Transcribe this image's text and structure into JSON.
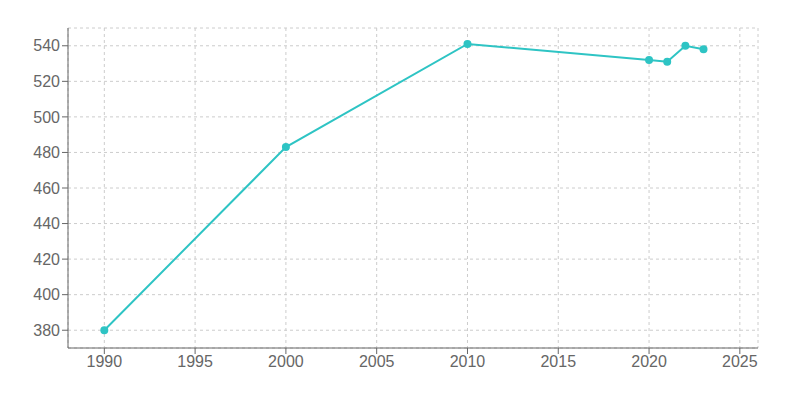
{
  "chart_data": {
    "type": "line",
    "x": [
      1990,
      2000,
      2010,
      2020,
      2021,
      2022,
      2023
    ],
    "values": [
      380,
      483,
      541,
      532,
      531,
      540,
      538
    ],
    "color": "#2ec4c4",
    "marker": "circle",
    "xlim": [
      1988,
      2026
    ],
    "xticks": [
      1990,
      1995,
      2000,
      2005,
      2010,
      2015,
      2020,
      2025
    ],
    "ylim": [
      370,
      550
    ],
    "yticks": [
      380,
      400,
      420,
      440,
      460,
      480,
      500,
      520,
      540
    ],
    "grid": true
  }
}
